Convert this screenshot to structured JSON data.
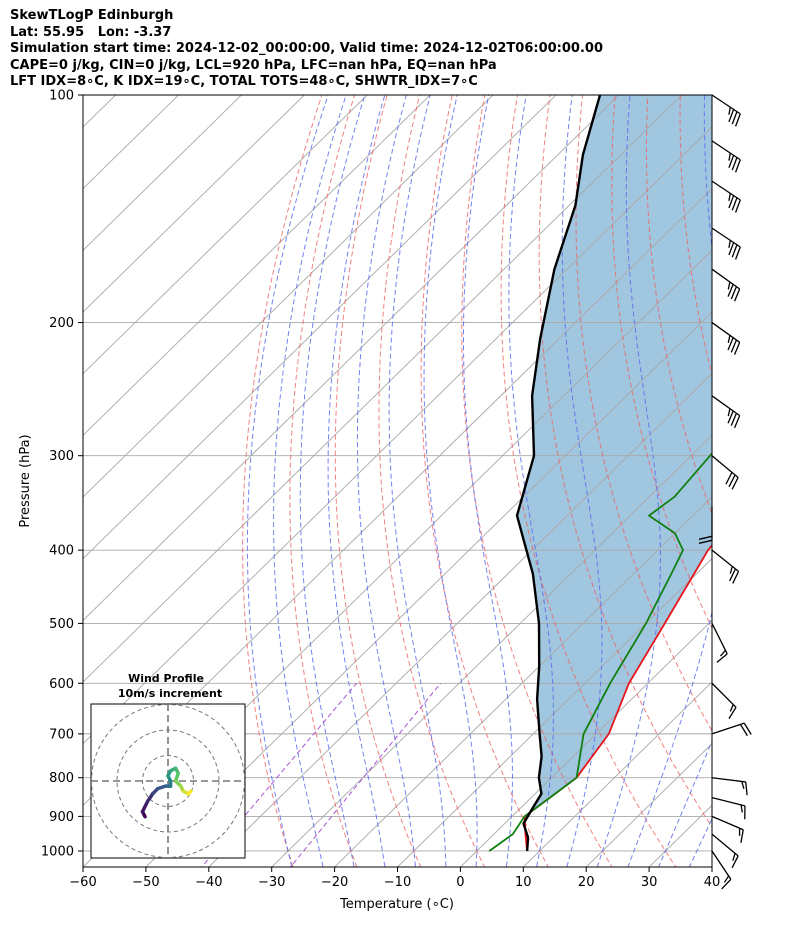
{
  "header": {
    "line1": "SkewTLogP Edinburgh",
    "line2": "Lat: 55.95   Lon: -3.37",
    "line3": "Simulation start time: 2024-12-02_00:00:00, Valid time: 2024-12-02T06:00:00.00",
    "line4": "CAPE=0 j/kg, CIN=0 j/kg, LCL=920 hPa, LFC=nan hPa, EQ=nan hPa",
    "line5": "LFT IDX=8∘C, K IDX=19∘C, TOTAL TOTS=48∘C, SHWTR_IDX=7∘C"
  },
  "inset": {
    "title_line1": "Wind Profile",
    "title_line2": "10m/s increment"
  },
  "colors": {
    "temperature": "#e8141c",
    "dewpoint": "#108010",
    "parcel": "#000000",
    "cape_fill": "#a0c6e0",
    "dry_adiabat": "#f06060",
    "moist_adiabat": "#5a6cf0",
    "mixing_ratio": "#a855d0",
    "isotherm": "#a8a8a8"
  },
  "chart_data": {
    "type": "line",
    "title": "SkewTLogP Edinburgh",
    "xlabel": "Temperature (∘C)",
    "ylabel": "Pressure (hPa)",
    "xlim": [
      -60,
      40
    ],
    "ylim": [
      1050,
      100
    ],
    "y_scale": "log",
    "x_ticks": [
      -60,
      -50,
      -40,
      -30,
      -20,
      -10,
      0,
      10,
      20,
      30,
      40
    ],
    "y_ticks": [
      1000,
      900,
      800,
      700,
      600,
      500,
      400,
      300,
      200,
      100
    ],
    "grid": true,
    "series": [
      {
        "name": "Temperature",
        "points": [
          [
            8,
            1000
          ],
          [
            5,
            950
          ],
          [
            2,
            900
          ],
          [
            3,
            850
          ],
          [
            4,
            800
          ],
          [
            2,
            700
          ],
          [
            -3,
            600
          ],
          [
            -7,
            500
          ],
          [
            -12,
            400
          ],
          [
            -13,
            360
          ],
          [
            -12,
            320
          ],
          [
            -10,
            280
          ],
          [
            -8,
            240
          ],
          [
            -4,
            200
          ],
          [
            1,
            170
          ],
          [
            6,
            140
          ],
          [
            10,
            115
          ],
          [
            12,
            100
          ]
        ]
      },
      {
        "name": "Dewpoint",
        "points": [
          [
            2,
            1000
          ],
          [
            3,
            950
          ],
          [
            2,
            900
          ],
          [
            3,
            850
          ],
          [
            4,
            800
          ],
          [
            -2,
            700
          ],
          [
            -6,
            600
          ],
          [
            -10,
            500
          ],
          [
            -14,
            430
          ],
          [
            -16,
            400
          ],
          [
            -20,
            380
          ],
          [
            -27,
            360
          ],
          [
            -26,
            340
          ],
          [
            -27,
            300
          ],
          [
            -28,
            260
          ],
          [
            -27,
            230
          ],
          [
            -30,
            200
          ],
          [
            -31,
            175
          ],
          [
            -27,
            155
          ],
          [
            -20,
            125
          ],
          [
            -13,
            100
          ]
        ]
      },
      {
        "name": "Parcel",
        "points": [
          [
            8,
            1000
          ],
          [
            6,
            960
          ],
          [
            3,
            920
          ],
          [
            2,
            880
          ],
          [
            1,
            840
          ],
          [
            -2,
            800
          ],
          [
            -5,
            750
          ],
          [
            -9,
            700
          ],
          [
            -15,
            630
          ],
          [
            -20,
            570
          ],
          [
            -27,
            500
          ],
          [
            -36,
            430
          ],
          [
            -48,
            360
          ],
          [
            -55,
            300
          ],
          [
            -65,
            250
          ],
          [
            -73,
            210
          ],
          [
            -82,
            170
          ],
          [
            -89,
            140
          ],
          [
            -96,
            120
          ],
          [
            -103,
            100
          ]
        ]
      }
    ],
    "wind_barbs": [
      {
        "p": 1000,
        "u": -4,
        "v": 6
      },
      {
        "p": 950,
        "u": -6,
        "v": 5
      },
      {
        "p": 900,
        "u": -7,
        "v": 3
      },
      {
        "p": 850,
        "u": -8,
        "v": 2
      },
      {
        "p": 800,
        "u": -8,
        "v": 1
      },
      {
        "p": 700,
        "u": -9,
        "v": -3
      },
      {
        "p": 600,
        "u": -5,
        "v": 5
      },
      {
        "p": 500,
        "u": -3,
        "v": 6
      },
      {
        "p": 400,
        "u": -10,
        "v": 8
      },
      {
        "p": 350,
        "u": 0,
        "v": 10
      },
      {
        "p": 300,
        "u": -12,
        "v": 10
      },
      {
        "p": 250,
        "u": -14,
        "v": 10
      },
      {
        "p": 200,
        "u": -14,
        "v": 10
      },
      {
        "p": 170,
        "u": -14,
        "v": 10
      },
      {
        "p": 150,
        "u": -15,
        "v": 10
      },
      {
        "p": 130,
        "u": -15,
        "v": 10
      },
      {
        "p": 115,
        "u": -15,
        "v": 10
      },
      {
        "p": 100,
        "u": -15,
        "v": 10
      }
    ],
    "hodograph": {
      "rings_ms": [
        10,
        20,
        30
      ],
      "points": [
        [
          -9,
          -14
        ],
        [
          -10,
          -12
        ],
        [
          -8,
          -8
        ],
        [
          -6,
          -5
        ],
        [
          -4,
          -3
        ],
        [
          -1,
          -2
        ],
        [
          1,
          -2
        ],
        [
          1,
          0
        ],
        [
          0,
          2
        ],
        [
          1,
          4
        ],
        [
          3,
          5
        ],
        [
          4,
          3
        ],
        [
          3,
          0
        ],
        [
          5,
          -2
        ],
        [
          6,
          -4
        ],
        [
          8,
          -5
        ],
        [
          9,
          -4
        ]
      ]
    }
  }
}
